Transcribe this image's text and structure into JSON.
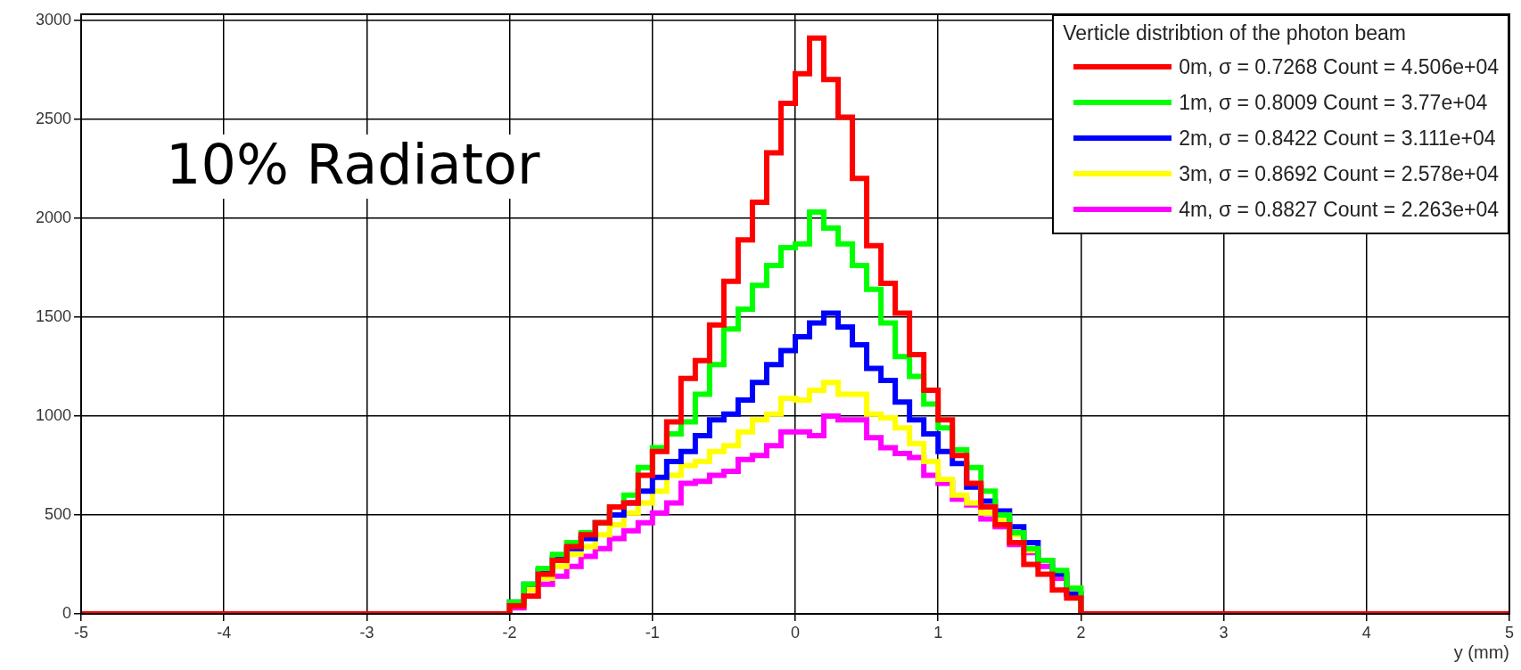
{
  "chart_data": {
    "type": "histogram",
    "bins": [
      -5,
      -2,
      -1.9,
      -1.8,
      -1.7,
      -1.6,
      -1.5,
      -1.4,
      -1.3,
      -1.2,
      -1.1,
      -1,
      -0.9,
      -0.8,
      -0.7,
      -0.6,
      -0.5,
      -0.4,
      -0.3,
      -0.2,
      -0.1,
      0,
      0.1,
      0.2,
      0.3,
      0.4,
      0.5,
      0.6,
      0.7,
      0.8,
      0.9,
      1,
      1.1,
      1.2,
      1.3,
      1.4,
      1.5,
      1.6,
      1.7,
      1.8,
      1.9,
      2,
      5
    ],
    "series": [
      {
        "name": "0m, σ = 0.7268 Count = 4.506e+04",
        "color": "#ff0000",
        "values": [
          0,
          40,
          90,
          200,
          270,
          340,
          400,
          460,
          540,
          560,
          700,
          820,
          970,
          1190,
          1280,
          1460,
          1680,
          1890,
          2080,
          2330,
          2580,
          2730,
          2910,
          2700,
          2510,
          2200,
          1860,
          1670,
          1520,
          1310,
          1130,
          980,
          800,
          660,
          540,
          450,
          360,
          250,
          200,
          120,
          80,
          0
        ]
      },
      {
        "name": "1m, σ = 0.8009 Count = 3.77e+04",
        "color": "#00ff00",
        "values": [
          0,
          60,
          150,
          230,
          300,
          360,
          410,
          460,
          540,
          600,
          740,
          840,
          910,
          970,
          1110,
          1260,
          1440,
          1540,
          1660,
          1760,
          1850,
          1870,
          2030,
          1950,
          1870,
          1760,
          1640,
          1470,
          1300,
          1200,
          1060,
          940,
          830,
          740,
          620,
          500,
          410,
          330,
          270,
          220,
          130,
          0
        ]
      },
      {
        "name": "2m, σ = 0.8422 Count = 3.111e+04",
        "color": "#0000ff",
        "values": [
          0,
          60,
          150,
          220,
          280,
          330,
          380,
          460,
          500,
          560,
          620,
          690,
          770,
          820,
          900,
          980,
          1010,
          1080,
          1170,
          1260,
          1330,
          1400,
          1470,
          1520,
          1450,
          1360,
          1240,
          1180,
          1070,
          980,
          910,
          820,
          760,
          640,
          570,
          520,
          440,
          360,
          270,
          200,
          100,
          0
        ]
      },
      {
        "name": "3m, σ = 0.8692 Count = 2.578e+04",
        "color": "#ffff00",
        "values": [
          0,
          40,
          120,
          180,
          240,
          300,
          340,
          400,
          450,
          510,
          560,
          620,
          700,
          750,
          770,
          820,
          850,
          920,
          980,
          1010,
          1090,
          1080,
          1130,
          1170,
          1110,
          1110,
          1010,
          990,
          940,
          860,
          770,
          680,
          600,
          560,
          510,
          470,
          400,
          320,
          270,
          200,
          130,
          0
        ]
      },
      {
        "name": "4m, σ = 0.8827 Count = 2.263e+04",
        "color": "#ff00ff",
        "values": [
          0,
          30,
          90,
          150,
          190,
          240,
          290,
          330,
          380,
          420,
          460,
          510,
          560,
          660,
          670,
          700,
          720,
          780,
          800,
          850,
          920,
          920,
          900,
          1000,
          980,
          980,
          890,
          840,
          810,
          790,
          700,
          660,
          580,
          550,
          480,
          440,
          350,
          310,
          240,
          180,
          100,
          0
        ]
      }
    ],
    "xlabel": "y (mm)",
    "legend_title": "Verticle distribtion of the photon beam",
    "annotations": [
      "10% Radiator"
    ],
    "xlim": [
      -5,
      5
    ],
    "xticks": [
      -5,
      -4,
      -3,
      -2,
      -1,
      0,
      1,
      2,
      3,
      4,
      5
    ],
    "ylim": [
      0,
      3030
    ],
    "yticks": [
      0,
      500,
      1000,
      1500,
      2000,
      2500,
      3000
    ],
    "grid": true,
    "legend": "top right"
  }
}
